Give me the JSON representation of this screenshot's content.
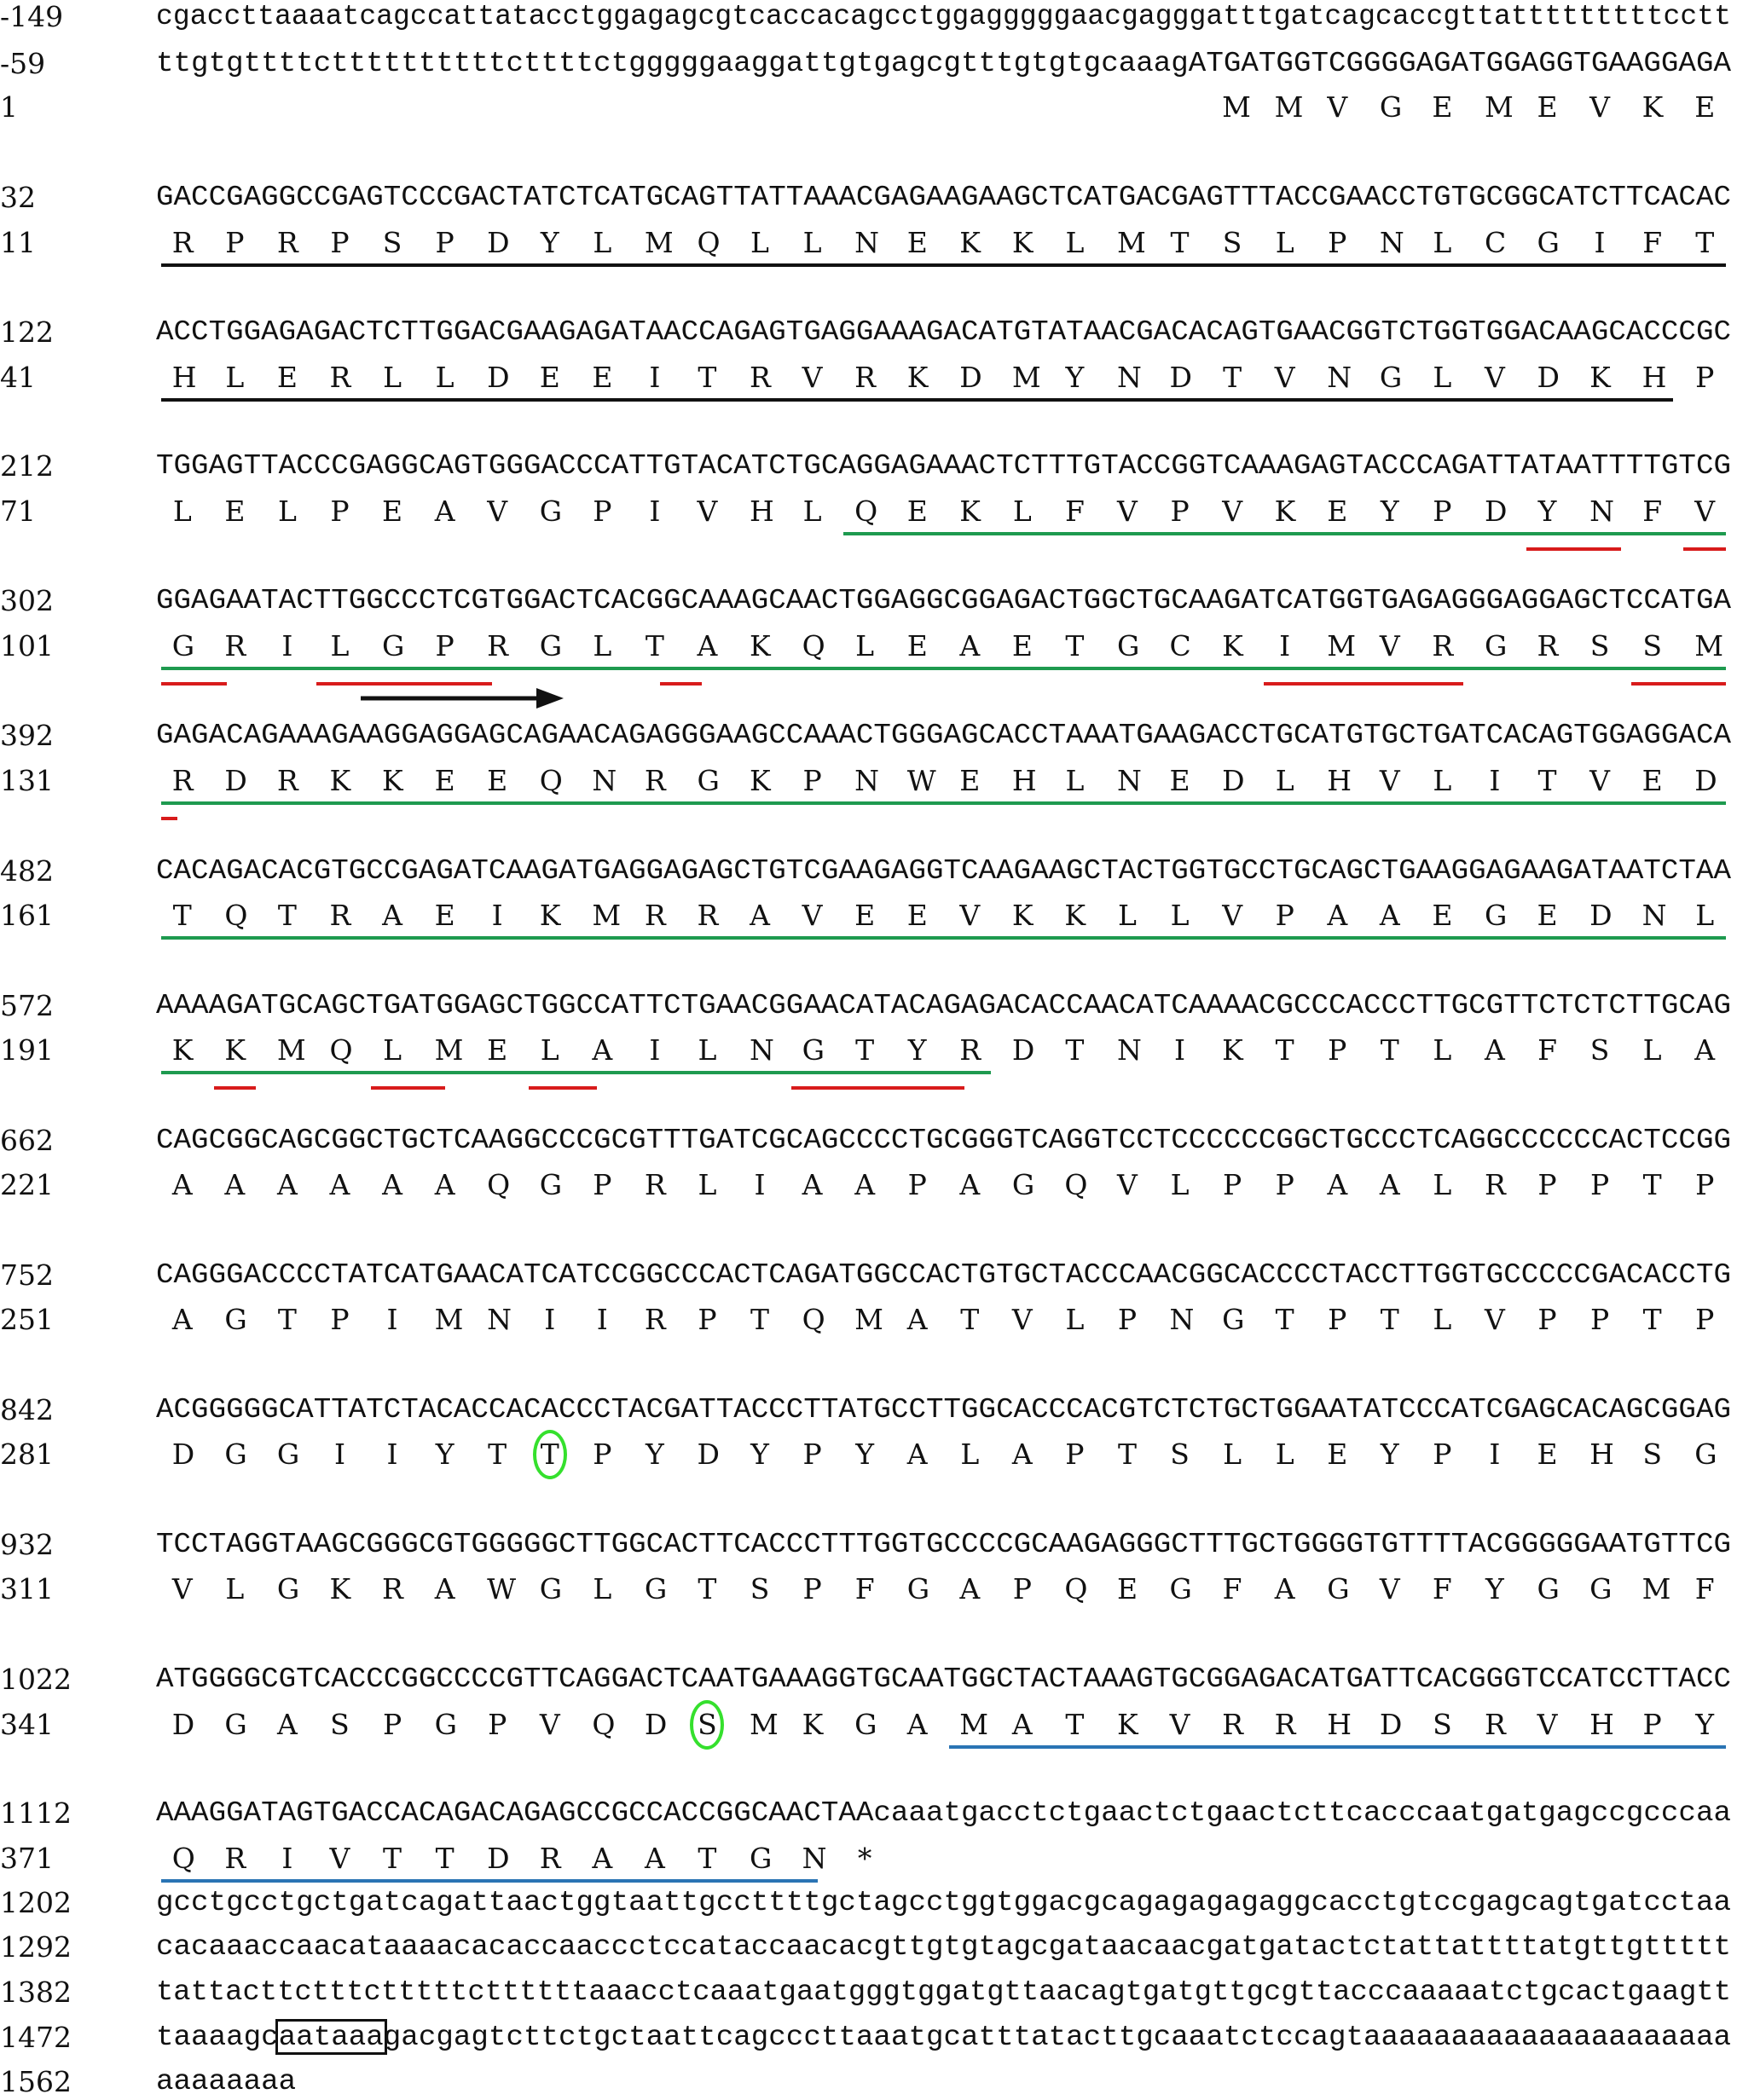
{
  "rows": [
    {
      "num": "-149",
      "seq": "cgaccttaaaatcagccattatacctggagagcgtcaccacagcctggagggggaacgagggatttgatcagcaccgttatttttttttcctt"
    },
    {
      "num": "-59",
      "seq": "ttgtgttttcttttttttttcttttctgggggaaggattgtgagcgtttgtgtgcaaagATGATGGTCGGGGAGATGGAGGTGAAGGAGA"
    },
    {
      "num": "1",
      "seq": "MMVGEMEVKE"
    },
    {
      "num": "32",
      "seq": "GACCGAGGCCGAGTCCCGACTATCTCATGCAGTTATTAAACGAGAAGAAGCTCATGACGAGTTTACCGAACCTGTGCGGCATCTTCACAC"
    },
    {
      "num": "11",
      "seq": "RPRPSPDYLMQLLNEKKLMTSLPNLCGIFT"
    },
    {
      "num": "122",
      "seq": "ACCTGGAGAGACTCTTGGACGAAGAGATAACCAGAGTGAGGAAAGACATGTATAACGACACAGTGAACGGTCTGGTGGACAAGCACCCGC"
    },
    {
      "num": "41",
      "seq": "HLERLLDEEITRVRKDMYNDTVNGLVDKHP"
    },
    {
      "num": "212",
      "seq": "TGGAGTTACCCGAGGCAGTGGGACCCATTGTACATCTGCAGGAGAAACTCTTTGTACCGGTCAAAGAGTACCCAGATTATAATTTTGTCG"
    },
    {
      "num": "71",
      "seq": "LELPEAVGPIVHLQEKLFVPVKEYPDYNFV"
    },
    {
      "num": "302",
      "seq": "GGAGAATACTTGGCCCTCGTGGACTCACGGCAAAGCAACTGGAGGCGGAGACTGGCTGCAAGATCATGGTGAGAGGGAGGAGCTCCATGA"
    },
    {
      "num": "101",
      "seq": "GRILGPRGLTAKQLEAETGCKIMVRGRSSM"
    },
    {
      "num": "392",
      "seq": "GAGACAGAAAGAAGGAGGAGCAGAACAGAGGGAAGCCAAACTGGGAGCACCTAAATGAAGACCTGCATGTGCTGATCACAGTGGAGGACA"
    },
    {
      "num": "131",
      "seq": "RDRKKEEQNRGKPNWEHLNEDLHVLITVED"
    },
    {
      "num": "482",
      "seq": "CACAGACACGTGCCGAGATCAAGATGAGGAGAGCTGTCGAAGAGGTCAAGAAGCTACTGGTGCCTGCAGCTGAAGGAGAAGATAATCTAA"
    },
    {
      "num": "161",
      "seq": "TQTRAEIKMRRAVEEVKKLLVPAAEGEDNL"
    },
    {
      "num": "572",
      "seq": "AAAAGATGCAGCTGATGGAGCTGGCCATTCTGAACGGAACATACAGAGACACCAACATCAAAACGCCCACCCTTGCGTTCTCTCTTGCAG"
    },
    {
      "num": "191",
      "seq": "KKMQLMELAILNGTYRDTNIKTPTLAFSLA"
    },
    {
      "num": "662",
      "seq": "CAGCGGCAGCGGCTGCTCAAGGCCCGCGTTTGATCGCAGCCCCTGCGGGTCAGGTCCTCCCCCCGGCTGCCCTCAGGCCCCCCACTCCGG"
    },
    {
      "num": "221",
      "seq": "AAAAAAQGPRLIAAPAGQVLPPAALRPPTP"
    },
    {
      "num": "752",
      "seq": "CAGGGACCCCTATCATGAACATCATCCGGCCCACTCAGATGGCCACTGTGCTACCCAACGGCACCCCTACCTTGGTGCCCCCGACACCTG"
    },
    {
      "num": "251",
      "seq": "AGTPIMNIIRPTQMATVLPNGTPTLVPPTP"
    },
    {
      "num": "842",
      "seq": "ACGGGGGCATTATCTACACCACACCCTACGATTACCCTTATGCCTTGGCACCCACGTCTCTGCTGGAATATCCCATCGAGCACAGCGGAG"
    },
    {
      "num": "281",
      "seq": "DGGIIYTTPYDYPYALAPTSLLEYPIEHSG"
    },
    {
      "num": "932",
      "seq": "TCCTAGGTAAGCGGGCGTGGGGGCTTGGCACTTCACCCTTTGGTGCCCCGCAAGAGGGCTTTGCTGGGGTGTTTTACGGGGGAATGTTCG"
    },
    {
      "num": "311",
      "seq": "VLGKRAWGLGTSPFGAPQEGFAGVFYGGMF"
    },
    {
      "num": "1022",
      "seq": "ATGGGGCGTCACCCGGCCCCGTTCAGGACTCAATGAAAGGTGCAATGGCTACTAAAGTGCGGAGACATGATTCACGGGTCCATCCTTACC"
    },
    {
      "num": "341",
      "seq": "DGASPGPVQDSMKGAMATKVRRHDSRVHPY"
    },
    {
      "num": "1112",
      "seq": "AAAGGATAGTGACCACAGACAGAGCCGCCACCGGCAACTAAcaaatgacctctgaactctgaactcttcacccaatgatgagccgcccaa"
    },
    {
      "num": "371",
      "seq": "QRIVTTDRAATGN*"
    },
    {
      "num": "1202",
      "seq": "gcctgcctgctgatcagattaactggtaattgccttttgctagcctggtggacgcagagagagaggcacctgtccgagcagtgatcctaa"
    },
    {
      "num": "1292",
      "seq": "cacaaaccaacataaaacacaccaaccctccataccaacacgttgtgtagcgataacaacgatgatactctattattttatgttgttttt"
    },
    {
      "num": "1382",
      "seq": "tattacttctttctttttcttttttaaacctcaaatgaatgggtggatgttaacagtgatgttgcgttacccaaaaatctgcactgaagtt"
    },
    {
      "num": "1472",
      "seq": "taaaagcaataaagacgagtcttctgctaattcagcccttaaatgcatttatacttgcaaatctccagtaaaaaaaaaaaaaaaaaaaaa"
    },
    {
      "num": "1562",
      "seq": "aaaaaaaa"
    }
  ]
}
